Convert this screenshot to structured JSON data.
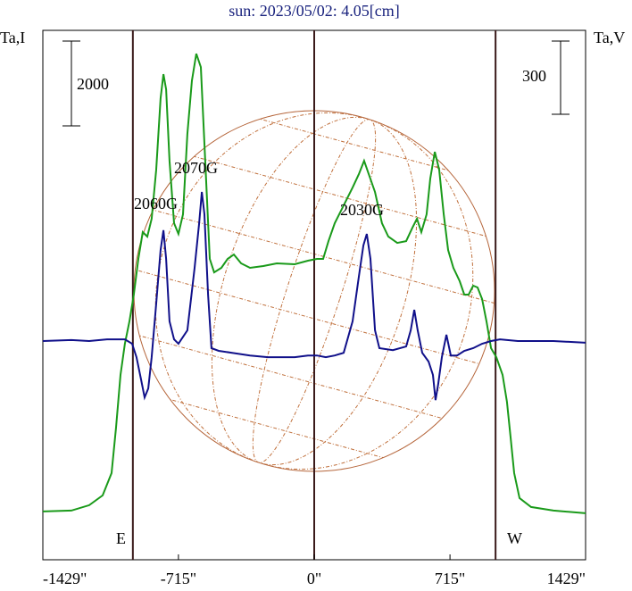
{
  "chart_data": {
    "type": "line",
    "title": "sun: 2023/05/02: 4.05[cm]",
    "ylabel": "Ta,I",
    "y2label": "Ta,V",
    "xlim": [
      -1429,
      1429
    ],
    "xticks": [
      {
        "value": -1429,
        "label": "-1429\""
      },
      {
        "value": -715,
        "label": "-715\""
      },
      {
        "value": 0,
        "label": "0\""
      },
      {
        "value": 715,
        "label": "715\""
      },
      {
        "value": 1429,
        "label": "1429\""
      }
    ],
    "ylim": [
      -1140,
      11350
    ],
    "y2lim": [
      -896,
      1273
    ],
    "scale_bar": 2000,
    "y2_scale_bar": 300,
    "limb_lines": [
      -955,
      0,
      955
    ],
    "limb_labels": [
      "E",
      "W"
    ],
    "annotations": [
      "2060G",
      "2070G",
      "2030G"
    ],
    "series": [
      {
        "name": "I",
        "color": "#1a9a1a",
        "x": [
          -1429,
          -1279,
          -1185,
          -1114,
          -1067,
          -1044,
          -1020,
          -997,
          -973,
          -950,
          -926,
          -903,
          -879,
          -856,
          -832,
          -809,
          -794,
          -780,
          -762,
          -738,
          -715,
          -691,
          -668,
          -644,
          -621,
          -597,
          -574,
          -550,
          -527,
          -489,
          -456,
          -423,
          -385,
          -338,
          -268,
          -197,
          -103,
          -33,
          14,
          47,
          75,
          108,
          155,
          202,
          235,
          263,
          287,
          320,
          357,
          390,
          437,
          484,
          517,
          541,
          564,
          592,
          611,
          635,
          658,
          682,
          705,
          733,
          766,
          790,
          813,
          837,
          860,
          884,
          907,
          931,
          959,
          992,
          1015,
          1034,
          1053,
          1081,
          1142,
          1260,
          1429
        ],
        "values": [
          0,
          21,
          147,
          379,
          905,
          1958,
          3221,
          3957,
          4484,
          5115,
          5957,
          6589,
          6484,
          6905,
          8063,
          9747,
          10315,
          9957,
          8273,
          6800,
          6547,
          7010,
          8904,
          10167,
          10799,
          10483,
          8273,
          5957,
          5641,
          5747,
          5957,
          6062,
          5852,
          5747,
          5789,
          5852,
          5831,
          5915,
          5957,
          5957,
          6378,
          6800,
          7220,
          7641,
          7957,
          8273,
          7957,
          7536,
          6800,
          6484,
          6336,
          6378,
          6694,
          6905,
          6589,
          7010,
          7852,
          8483,
          8063,
          7010,
          6168,
          5747,
          5431,
          5115,
          5115,
          5326,
          5284,
          5010,
          4484,
          3852,
          3642,
          3221,
          2589,
          1747,
          905,
          316,
          105,
          21,
          -42
        ]
      },
      {
        "name": "V",
        "color": "#10108a",
        "axis": "y2",
        "x": [
          -1429,
          -1279,
          -1185,
          -1091,
          -997,
          -959,
          -936,
          -912,
          -893,
          -874,
          -856,
          -832,
          -809,
          -794,
          -780,
          -762,
          -738,
          -715,
          -668,
          -630,
          -606,
          -592,
          -578,
          -559,
          -541,
          -503,
          -432,
          -338,
          -244,
          -103,
          -33,
          14,
          61,
          108,
          155,
          202,
          235,
          259,
          277,
          296,
          320,
          343,
          414,
          484,
          508,
          527,
          545,
          569,
          602,
          625,
          639,
          653,
          672,
          696,
          719,
          752,
          790,
          837,
          884,
          931,
          978,
          1072,
          1260,
          1429
        ],
        "values": [
          0,
          4,
          0,
          7,
          7,
          -11,
          -66,
          -157,
          -231,
          -194,
          -66,
          154,
          373,
          454,
          337,
          81,
          7,
          -11,
          44,
          300,
          483,
          611,
          520,
          190,
          -29,
          -40,
          -48,
          -59,
          -66,
          -66,
          -59,
          -59,
          -66,
          -59,
          -48,
          81,
          264,
          392,
          439,
          337,
          44,
          -29,
          -37,
          -22,
          44,
          128,
          44,
          -48,
          -84,
          -139,
          -242,
          -176,
          -66,
          26,
          -59,
          -59,
          -40,
          -29,
          -11,
          0,
          7,
          0,
          0,
          -7
        ]
      }
    ]
  }
}
